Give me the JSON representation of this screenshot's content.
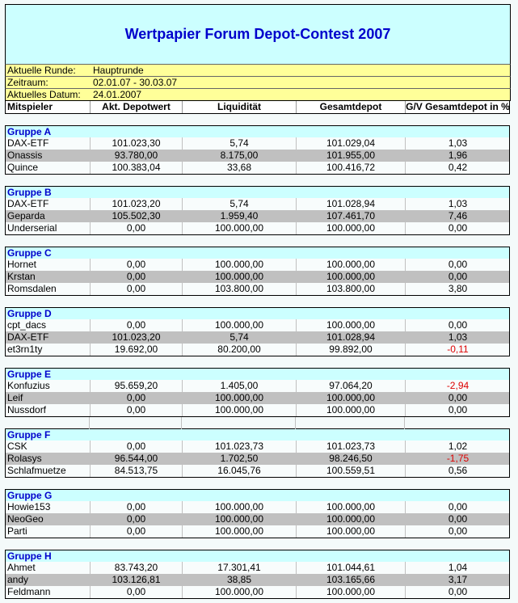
{
  "title": "Wertpapier Forum Depot-Contest 2007",
  "info": [
    {
      "label": "Aktuelle Runde:",
      "value": "Hauptrunde"
    },
    {
      "label": "Zeitraum:",
      "value": "02.01.07 - 30.03.07"
    },
    {
      "label": "Aktuelles Datum:",
      "value": "24.01.2007"
    }
  ],
  "columns": [
    "Mitspieler",
    "Akt. Depotwert",
    "Liquidität",
    "Gesamtdepot",
    "G/V Gesamtdepot in %"
  ],
  "colors": {
    "title": "#0000cc",
    "header_bg": "#ccffff",
    "info_bg": "#ffff99",
    "alt_row": "#c0c0c0",
    "negative": "#dd0000"
  },
  "groups": [
    {
      "name": "Gruppe A",
      "rows": [
        [
          "DAX-ETF",
          "101.023,30",
          "5,74",
          "101.029,04",
          "1,03"
        ],
        [
          "Onassis",
          "93.780,00",
          "8.175,00",
          "101.955,00",
          "1,96"
        ],
        [
          "Quince",
          "100.383,04",
          "33,68",
          "100.416,72",
          "0,42"
        ]
      ]
    },
    {
      "name": "Gruppe B",
      "rows": [
        [
          "DAX-ETF",
          "101.023,20",
          "5,74",
          "101.028,94",
          "1,03"
        ],
        [
          "Geparda",
          "105.502,30",
          "1.959,40",
          "107.461,70",
          "7,46"
        ],
        [
          "Underserial",
          "0,00",
          "100.000,00",
          "100.000,00",
          "0,00"
        ]
      ]
    },
    {
      "name": "Gruppe C",
      "rows": [
        [
          "Hornet",
          "0,00",
          "100.000,00",
          "100.000,00",
          "0,00"
        ],
        [
          "Krstan",
          "0,00",
          "100.000,00",
          "100.000,00",
          "0,00"
        ],
        [
          "Romsdalen",
          "0,00",
          "103.800,00",
          "103.800,00",
          "3,80"
        ]
      ]
    },
    {
      "name": "Gruppe D",
      "rows": [
        [
          "cpt_dacs",
          "0,00",
          "100.000,00",
          "100.000,00",
          "0,00"
        ],
        [
          "DAX-ETF",
          "101.023,20",
          "5,74",
          "101.028,94",
          "1,03"
        ],
        [
          "et3rn1ty",
          "19.692,00",
          "80.200,00",
          "99.892,00",
          "-0,11"
        ]
      ]
    },
    {
      "name": "Gruppe E",
      "rows": [
        [
          "Konfuzius",
          "95.659,20",
          "1.405,00",
          "97.064,20",
          "-2,94"
        ],
        [
          "Leif",
          "0,00",
          "100.000,00",
          "100.000,00",
          "0,00"
        ],
        [
          "Nussdorf",
          "0,00",
          "100.000,00",
          "100.000,00",
          "0,00"
        ]
      ]
    },
    {
      "name": "Gruppe F",
      "rows": [
        [
          "CSK",
          "0,00",
          "101.023,73",
          "101.023,73",
          "1,02"
        ],
        [
          "Rolasys",
          "96.544,00",
          "1.702,50",
          "98.246,50",
          "-1,75"
        ],
        [
          "Schlafmuetze",
          "84.513,75",
          "16.045,76",
          "100.559,51",
          "0,56"
        ]
      ]
    },
    {
      "name": "Gruppe G",
      "rows": [
        [
          "Howie153",
          "0,00",
          "100.000,00",
          "100.000,00",
          "0,00"
        ],
        [
          "NeoGeo",
          "0,00",
          "100.000,00",
          "100.000,00",
          "0,00"
        ],
        [
          "Parti",
          "0,00",
          "100.000,00",
          "100.000,00",
          "0,00"
        ]
      ]
    },
    {
      "name": "Gruppe H",
      "rows": [
        [
          "Ahmet",
          "83.743,20",
          "17.301,41",
          "101.044,61",
          "1,04"
        ],
        [
          "andy",
          "103.126,81",
          "38,85",
          "103.165,66",
          "3,17"
        ],
        [
          "Feldmann",
          "0,00",
          "100.000,00",
          "100.000,00",
          "0,00"
        ]
      ]
    }
  ]
}
